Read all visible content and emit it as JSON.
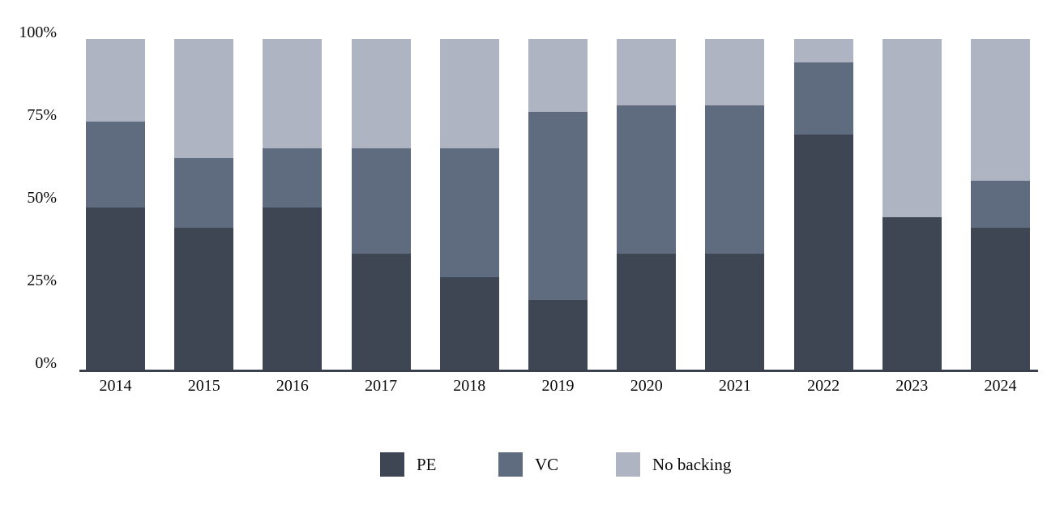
{
  "chart_data": {
    "type": "bar",
    "variant": "stacked-100-percent",
    "title": "",
    "xlabel": "",
    "ylabel": "",
    "categories": [
      "2014",
      "2015",
      "2016",
      "2017",
      "2018",
      "2019",
      "2020",
      "2021",
      "2022",
      "2023",
      "2024"
    ],
    "series": [
      {
        "name": "PE",
        "color": "#3e4654",
        "values": [
          49,
          43,
          49,
          35,
          28,
          21,
          35,
          35,
          71,
          46,
          43
        ]
      },
      {
        "name": "VC",
        "color": "#5f6b7e",
        "values": [
          26,
          21,
          18,
          32,
          39,
          57,
          45,
          45,
          22,
          0,
          14
        ]
      },
      {
        "name": "No backing",
        "color": "#aeb4c1",
        "values": [
          25,
          36,
          33,
          33,
          33,
          22,
          20,
          20,
          7,
          54,
          43
        ]
      }
    ],
    "yticks": [
      {
        "value": 0,
        "label": "0%"
      },
      {
        "value": 25,
        "label": "25%"
      },
      {
        "value": 50,
        "label": "50%"
      },
      {
        "value": 75,
        "label": "75%"
      },
      {
        "value": 100,
        "label": "100%"
      }
    ],
    "ylim": [
      0,
      100
    ],
    "grid": false,
    "legend_position": "bottom-center",
    "legend": [
      "PE",
      "VC",
      "No backing"
    ],
    "colors": {
      "axis_line": "#3a414d",
      "text": "#0b0b0b",
      "background": "#ffffff"
    }
  }
}
